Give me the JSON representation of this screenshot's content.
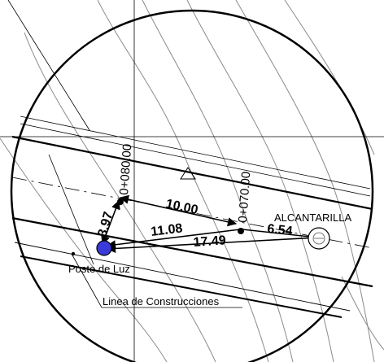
{
  "drawing": {
    "stations": {
      "upper": "0+080.00",
      "lower": "0+070.00"
    },
    "dimensions": {
      "d_10": "10.00",
      "d_11": "11.08",
      "d_17": "17.49",
      "d_6": "6.54",
      "d_3": "3.97"
    },
    "labels": {
      "alcantarilla": "ALCANTARILLA",
      "poste": "Poste de Luz",
      "linea": "Linea de Construcciones"
    },
    "colors": {
      "line": "#000000",
      "contour": "#8a8a8a",
      "pole_fill": "#3a3ad8"
    }
  }
}
